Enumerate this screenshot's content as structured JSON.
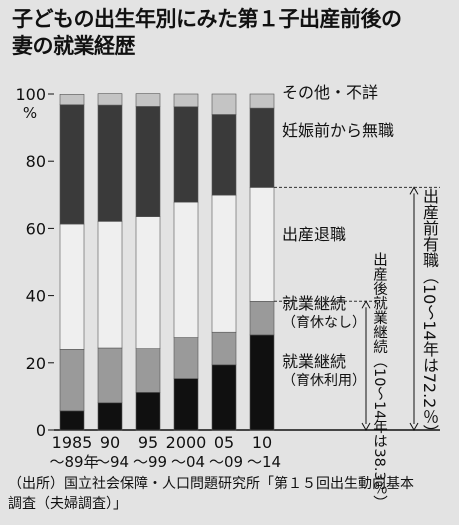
{
  "title": {
    "line1": "子どもの出生年別にみた第１子出産前後の",
    "line2": "妻の就業経歴"
  },
  "chart_data": {
    "type": "bar",
    "stacked": true,
    "y_unit": "%",
    "ylim": [
      0,
      100
    ],
    "yticks": [
      "0",
      "20",
      "40",
      "60",
      "80",
      "100"
    ],
    "categories": [
      [
        "1985",
        "～89年"
      ],
      [
        "90",
        "～94"
      ],
      [
        "95",
        "～99"
      ],
      [
        "2000",
        "～04"
      ],
      [
        "05",
        "～09"
      ],
      [
        "10",
        "～14"
      ]
    ],
    "series": [
      {
        "name_lines": [
          "就業継続",
          "（育休利用）"
        ],
        "color": "#101010",
        "values": [
          5.7,
          8.1,
          11.2,
          15.3,
          19.4,
          28.3
        ]
      },
      {
        "name_lines": [
          "就業継続",
          "（育休なし）"
        ],
        "color": "#9a9a9a",
        "values": [
          18.3,
          16.3,
          13.0,
          12.2,
          9.7,
          10.0
        ]
      },
      {
        "name_lines": [
          "出産退職"
        ],
        "color": "#efefef",
        "values": [
          37.3,
          37.7,
          39.3,
          40.3,
          40.8,
          33.9
        ]
      },
      {
        "name_lines": [
          "妊娠前から無職"
        ],
        "color": "#3a3a3a",
        "values": [
          35.5,
          34.6,
          32.8,
          28.4,
          24.0,
          23.6
        ]
      },
      {
        "name_lines": [
          "その他・不詳"
        ],
        "color": "#c4c4c4",
        "values": [
          3.1,
          3.4,
          3.8,
          3.8,
          6.1,
          4.2
        ]
      }
    ],
    "annotations": {
      "continued": {
        "text": "出産後就業継続（10～14年は38.3％）"
      },
      "employed_before": {
        "text": "出産前有職（10～14年は72.2％）"
      }
    }
  },
  "source": {
    "line1": "（出所）国立社会保障・人口問題研究所「第１５回出生動向基本",
    "line2": "調査（夫婦調査）」"
  }
}
